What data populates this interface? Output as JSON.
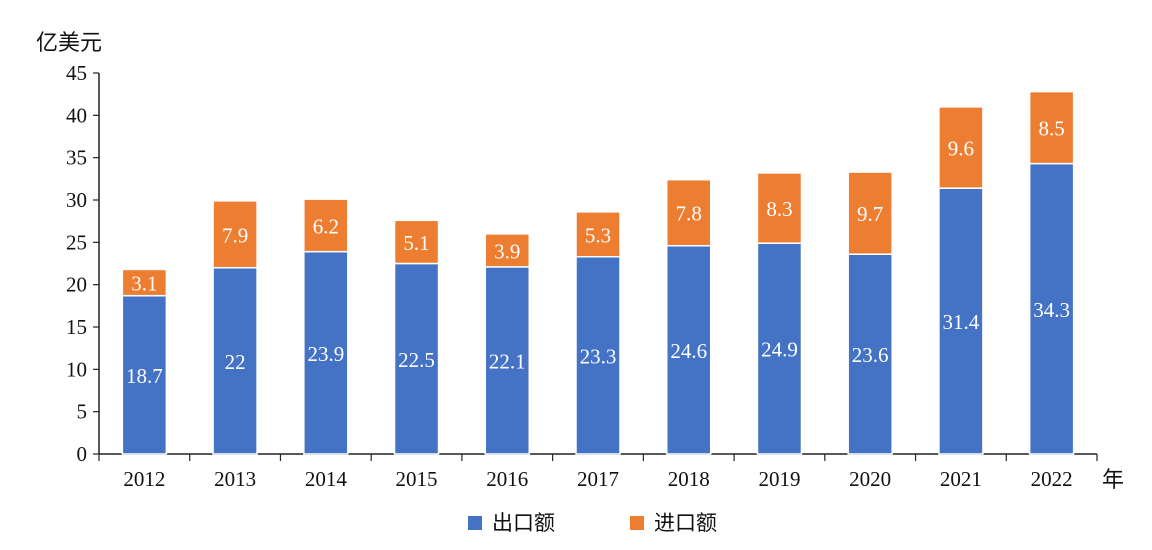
{
  "chart_data": {
    "type": "bar",
    "stacked": true,
    "y_unit_label": "亿美元",
    "x_unit_label": "年",
    "categories": [
      "2012",
      "2013",
      "2014",
      "2015",
      "2016",
      "2017",
      "2018",
      "2019",
      "2020",
      "2021",
      "2022"
    ],
    "series": [
      {
        "name": "出口额",
        "color": "#4472c4",
        "values": [
          18.7,
          22,
          23.9,
          22.5,
          22.1,
          23.3,
          24.6,
          24.9,
          23.6,
          31.4,
          34.3
        ],
        "labels": [
          "18.7",
          "22",
          "23.9",
          "22.5",
          "22.1",
          "23.3",
          "24.6",
          "24.9",
          "23.6",
          "31.4",
          "34.3"
        ]
      },
      {
        "name": "进口额",
        "color": "#ed7d31",
        "values": [
          3.1,
          7.9,
          6.2,
          5.1,
          3.9,
          5.3,
          7.8,
          8.3,
          9.7,
          9.6,
          8.5
        ],
        "labels": [
          "3.1",
          "7.9",
          "6.2",
          "5.1",
          "3.9",
          "5.3",
          "7.8",
          "8.3",
          "9.7",
          "9.6",
          "8.5"
        ]
      }
    ],
    "ylim": [
      0,
      45
    ],
    "yticks": [
      0,
      5,
      10,
      15,
      20,
      25,
      30,
      35,
      40,
      45
    ],
    "ytick_labels": [
      "0",
      "5",
      "10",
      "15",
      "20",
      "25",
      "30",
      "35",
      "40",
      "45"
    ],
    "grid": false,
    "legend_position": "bottom-center"
  }
}
